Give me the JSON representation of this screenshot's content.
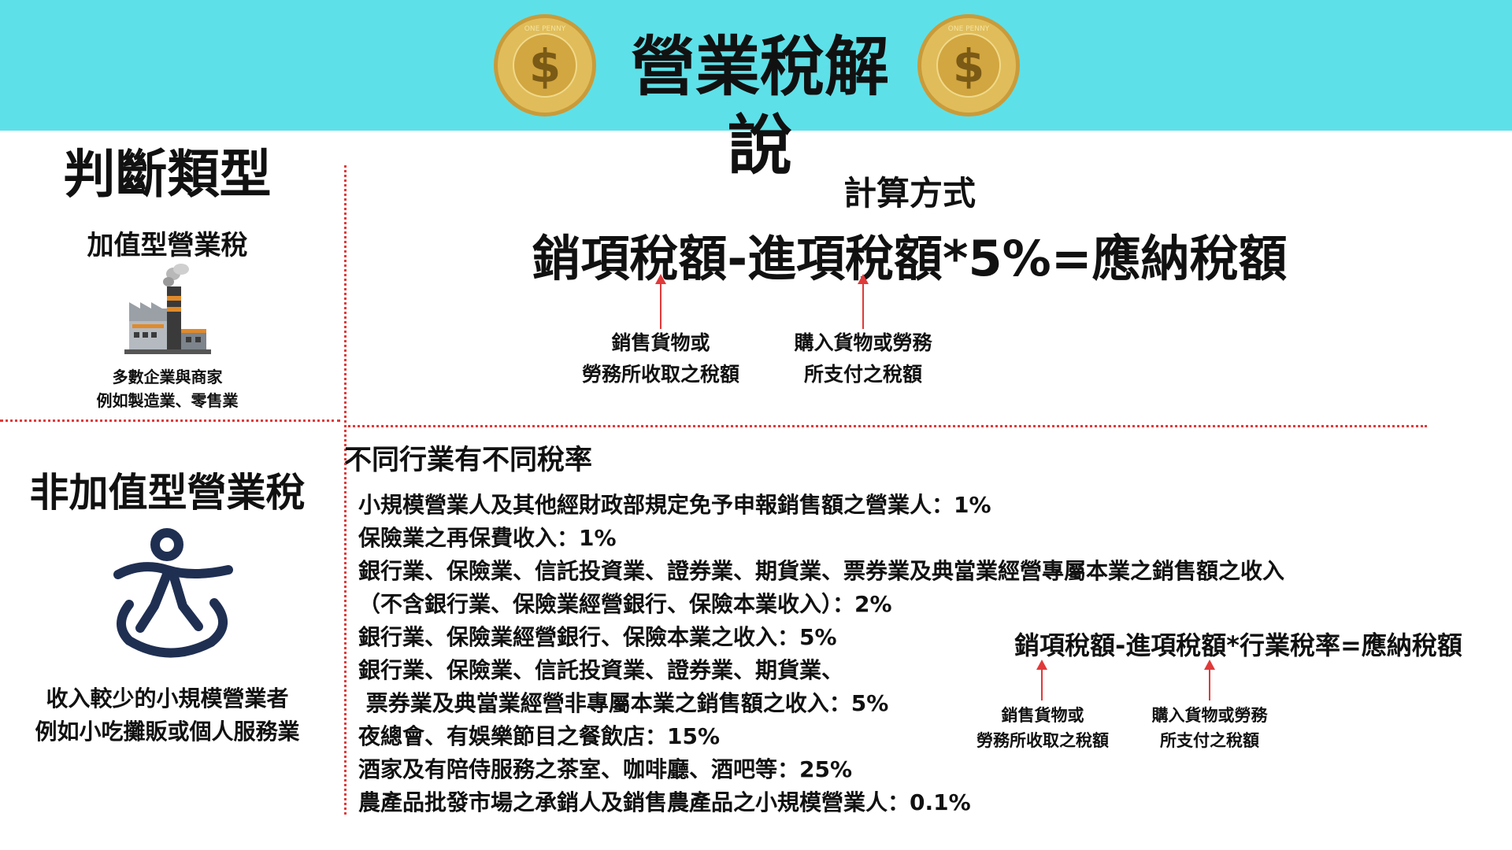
{
  "header": {
    "title": "營業稅解說",
    "bg_color": "#5ee0e8",
    "coin_text": "ONE PENNY",
    "coin_symbol": "$",
    "icons": [
      "coin-icon",
      "coin-icon"
    ]
  },
  "left": {
    "heading": "判斷類型",
    "vat": {
      "title": "加值型營業稅",
      "icon": "factory-icon",
      "desc_line1": "多數企業與商家",
      "desc_line2": "例如製造業、零售業"
    },
    "non_vat": {
      "title": "非加值型營業稅",
      "icon": "person-meditation-icon",
      "desc_line1": "收入較少的小規模營業者",
      "desc_line2": "例如小吃攤販或個人服務業"
    }
  },
  "calc": {
    "title": "計算方式",
    "formula": "銷項稅額-進項稅額*5%=應納稅額",
    "note_output_line1": "銷售貨物或",
    "note_output_line2": "勞務所收取之稅額",
    "note_input_line1": "購入貨物或勞務",
    "note_input_line2": "所支付之稅額"
  },
  "rates": {
    "title": "不同行業有不同稅率",
    "lines": [
      "小規模營業人及其他經財政部規定免予申報銷售額之營業人：1%",
      "保險業之再保費收入：1%",
      "銀行業、保險業、信託投資業、證券業、期貨業、票券業及典當業經營專屬本業之銷售額之收入",
      "（不含銀行業、保險業經營銀行、保險本業收入）：2%",
      "銀行業、保險業經營銀行、保險本業之收入：5%",
      "銀行業、保險業、信託投資業、證券業、期貨業、",
      " 票券業及典當業經營非專屬本業之銷售額之收入：5%",
      "夜總會、有娛樂節目之餐飲店：15%",
      "酒家及有陪侍服務之茶室、咖啡廳、酒吧等：25%",
      "農產品批發市場之承銷人及銷售農產品之小規模營業人：0.1%"
    ],
    "formula": "銷項稅額-進項稅額*行業稅率=應納稅額",
    "note_output_line1": "銷售貨物或",
    "note_output_line2": "勞務所收取之稅額",
    "note_input_line1": "購入貨物或勞務",
    "note_input_line2": "所支付之稅額"
  },
  "colors": {
    "accent_red": "#e03a3a",
    "coin_gold": "#d9b24a",
    "icon_navy": "#1f2f52"
  }
}
